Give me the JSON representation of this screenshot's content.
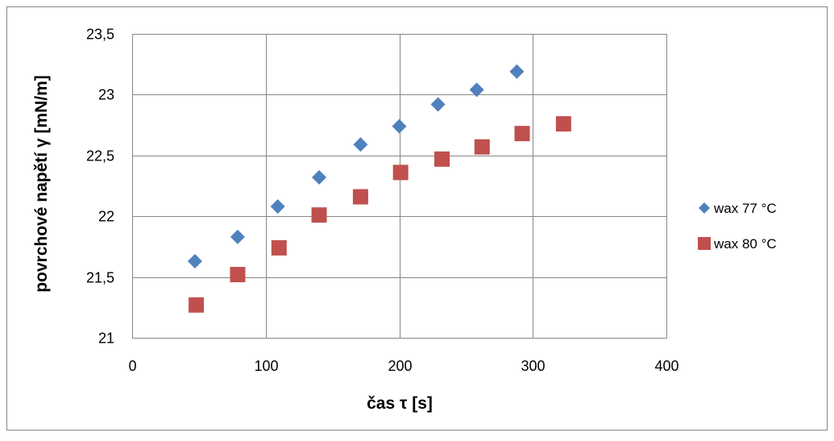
{
  "chart_data": {
    "type": "scatter",
    "title": "",
    "xlabel": "čas τ [s]",
    "ylabel": "povrchové napětí γ [mN/m]",
    "xlim": [
      0,
      400
    ],
    "ylim": [
      21,
      23.5
    ],
    "x_ticks": [
      "0",
      "100",
      "200",
      "300",
      "400"
    ],
    "y_ticks": [
      "21",
      "21,5",
      "22",
      "22,5",
      "23",
      "23,5"
    ],
    "grid": true,
    "legend_position": "right",
    "series": [
      {
        "name": "wax 77 °C",
        "marker": "diamond",
        "color": "#4F81BD",
        "x": [
          47,
          79,
          109,
          140,
          171,
          200,
          229,
          258,
          288
        ],
        "y": [
          21.63,
          21.83,
          22.08,
          22.32,
          22.59,
          22.74,
          22.92,
          23.04,
          23.19
        ]
      },
      {
        "name": "wax 80 °C",
        "marker": "square",
        "color": "#C0504D",
        "x": [
          48,
          79,
          110,
          140,
          171,
          201,
          232,
          262,
          292,
          323
        ],
        "y": [
          21.27,
          21.52,
          21.74,
          22.01,
          22.16,
          22.36,
          22.47,
          22.57,
          22.68,
          22.76
        ]
      }
    ]
  }
}
